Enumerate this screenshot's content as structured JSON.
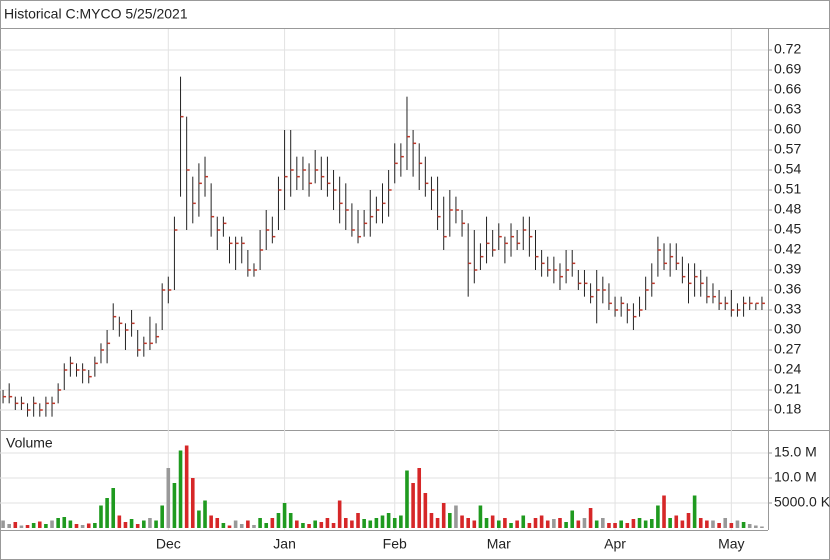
{
  "chart_data": [
    {
      "type": "ohlc",
      "title": "Historical C:MYCO 5/25/2021",
      "categories": [
        null,
        null,
        null,
        null,
        null,
        null,
        null,
        null,
        null,
        null,
        null,
        null,
        null,
        null,
        null,
        null,
        null,
        null,
        null,
        null,
        null,
        null,
        null,
        null,
        null,
        null,
        null,
        "Dec",
        null,
        null,
        null,
        null,
        null,
        null,
        null,
        null,
        null,
        null,
        null,
        null,
        null,
        null,
        null,
        null,
        null,
        null,
        "Jan",
        null,
        null,
        null,
        null,
        null,
        null,
        null,
        null,
        null,
        null,
        null,
        null,
        null,
        null,
        null,
        null,
        null,
        "Feb",
        null,
        null,
        null,
        null,
        null,
        null,
        null,
        null,
        null,
        null,
        null,
        null,
        null,
        null,
        null,
        null,
        "Mar",
        null,
        null,
        null,
        null,
        null,
        null,
        null,
        null,
        null,
        null,
        null,
        null,
        null,
        null,
        null,
        null,
        null,
        null,
        "Apr",
        null,
        null,
        null,
        null,
        null,
        null,
        null,
        null,
        null,
        null,
        null,
        null,
        null,
        null,
        null,
        null,
        null,
        null,
        "May",
        null,
        null,
        null,
        null,
        null
      ],
      "high": [
        0.21,
        0.22,
        0.2,
        0.2,
        0.19,
        0.2,
        0.19,
        0.2,
        0.2,
        0.22,
        0.25,
        0.26,
        0.25,
        0.25,
        0.24,
        0.26,
        0.28,
        0.3,
        0.34,
        0.32,
        0.31,
        0.33,
        0.3,
        0.29,
        0.32,
        0.31,
        0.37,
        0.38,
        0.47,
        0.68,
        0.62,
        0.53,
        0.55,
        0.56,
        0.52,
        0.47,
        0.47,
        0.44,
        0.44,
        0.44,
        0.42,
        0.4,
        0.45,
        0.48,
        0.47,
        0.53,
        0.6,
        0.6,
        0.56,
        0.56,
        0.55,
        0.57,
        0.56,
        0.56,
        0.54,
        0.53,
        0.52,
        0.49,
        0.48,
        0.48,
        0.51,
        0.5,
        0.52,
        0.54,
        0.58,
        0.58,
        0.65,
        0.6,
        0.58,
        0.56,
        0.53,
        0.53,
        0.5,
        0.51,
        0.5,
        0.48,
        0.46,
        0.45,
        0.43,
        0.47,
        0.45,
        0.46,
        0.44,
        0.46,
        0.45,
        0.47,
        0.47,
        0.45,
        0.42,
        0.41,
        0.41,
        0.4,
        0.42,
        0.42,
        0.39,
        0.39,
        0.37,
        0.39,
        0.38,
        0.37,
        0.35,
        0.35,
        0.34,
        0.34,
        0.35,
        0.38,
        0.4,
        0.44,
        0.43,
        0.43,
        0.43,
        0.41,
        0.4,
        0.4,
        0.39,
        0.38,
        0.37,
        0.36,
        0.35,
        0.36,
        0.34,
        0.35,
        0.35,
        0.34,
        0.35
      ],
      "low": [
        0.19,
        0.19,
        0.18,
        0.18,
        0.17,
        0.17,
        0.17,
        0.17,
        0.17,
        0.19,
        0.21,
        0.23,
        0.23,
        0.22,
        0.22,
        0.23,
        0.25,
        0.25,
        0.3,
        0.29,
        0.27,
        0.29,
        0.26,
        0.26,
        0.27,
        0.28,
        0.3,
        0.34,
        0.36,
        0.5,
        0.45,
        0.46,
        0.47,
        0.5,
        0.44,
        0.42,
        0.44,
        0.4,
        0.39,
        0.4,
        0.38,
        0.38,
        0.39,
        0.42,
        0.43,
        0.45,
        0.48,
        0.5,
        0.51,
        0.51,
        0.5,
        0.52,
        0.51,
        0.5,
        0.48,
        0.46,
        0.45,
        0.44,
        0.43,
        0.44,
        0.44,
        0.46,
        0.46,
        0.47,
        0.52,
        0.53,
        0.54,
        0.53,
        0.51,
        0.5,
        0.48,
        0.45,
        0.42,
        0.44,
        0.46,
        0.44,
        0.35,
        0.37,
        0.39,
        0.4,
        0.41,
        0.42,
        0.4,
        0.41,
        0.42,
        0.42,
        0.41,
        0.39,
        0.38,
        0.38,
        0.37,
        0.36,
        0.37,
        0.38,
        0.36,
        0.35,
        0.34,
        0.31,
        0.34,
        0.33,
        0.32,
        0.32,
        0.31,
        0.3,
        0.32,
        0.33,
        0.35,
        0.38,
        0.39,
        0.38,
        0.39,
        0.37,
        0.34,
        0.35,
        0.35,
        0.34,
        0.34,
        0.33,
        0.33,
        0.32,
        0.32,
        0.32,
        0.33,
        0.33,
        0.33
      ],
      "close": [
        0.2,
        0.2,
        0.19,
        0.19,
        0.18,
        0.19,
        0.18,
        0.19,
        0.19,
        0.21,
        0.24,
        0.25,
        0.24,
        0.24,
        0.23,
        0.25,
        0.27,
        0.28,
        0.32,
        0.31,
        0.3,
        0.31,
        0.27,
        0.28,
        0.28,
        0.29,
        0.36,
        0.36,
        0.45,
        0.62,
        0.54,
        0.49,
        0.52,
        0.53,
        0.47,
        0.45,
        0.46,
        0.43,
        0.43,
        0.43,
        0.39,
        0.39,
        0.42,
        0.45,
        0.44,
        0.51,
        0.53,
        0.54,
        0.53,
        0.54,
        0.52,
        0.54,
        0.53,
        0.52,
        0.51,
        0.49,
        0.48,
        0.45,
        0.44,
        0.46,
        0.47,
        0.48,
        0.49,
        0.51,
        0.55,
        0.56,
        0.59,
        0.58,
        0.55,
        0.52,
        0.51,
        0.47,
        0.44,
        0.48,
        0.48,
        0.46,
        0.4,
        0.39,
        0.41,
        0.43,
        0.42,
        0.44,
        0.43,
        0.44,
        0.43,
        0.45,
        0.44,
        0.41,
        0.4,
        0.39,
        0.39,
        0.38,
        0.39,
        0.4,
        0.37,
        0.37,
        0.35,
        0.36,
        0.36,
        0.34,
        0.33,
        0.34,
        0.33,
        0.32,
        0.33,
        0.36,
        0.37,
        0.42,
        0.4,
        0.41,
        0.4,
        0.38,
        0.37,
        0.38,
        0.37,
        0.35,
        0.35,
        0.34,
        0.34,
        0.33,
        0.33,
        0.34,
        0.34,
        0.34,
        0.34
      ],
      "color": "#222222",
      "close_color": "#c0392b",
      "ylim": [
        0.15,
        0.75
      ],
      "yticks": [
        {
          "value": 0.18,
          "label": "0.18"
        },
        {
          "value": 0.21,
          "label": "0.21"
        },
        {
          "value": 0.24,
          "label": "0.24"
        },
        {
          "value": 0.27,
          "label": "0.27"
        },
        {
          "value": 0.3,
          "label": "0.30"
        },
        {
          "value": 0.33,
          "label": "0.33"
        },
        {
          "value": 0.36,
          "label": "0.36"
        },
        {
          "value": 0.39,
          "label": "0.39"
        },
        {
          "value": 0.42,
          "label": "0.42"
        },
        {
          "value": 0.45,
          "label": "0.45"
        },
        {
          "value": 0.48,
          "label": "0.48"
        },
        {
          "value": 0.51,
          "label": "0.51"
        },
        {
          "value": 0.54,
          "label": "0.54"
        },
        {
          "value": 0.57,
          "label": "0.57"
        },
        {
          "value": 0.6,
          "label": "0.60"
        },
        {
          "value": 0.63,
          "label": "0.63"
        },
        {
          "value": 0.66,
          "label": "0.66"
        },
        {
          "value": 0.69,
          "label": "0.69"
        },
        {
          "value": 0.72,
          "label": "0.72"
        }
      ],
      "grid": true
    },
    {
      "type": "bar",
      "title": "Volume",
      "values": [
        1500000,
        800000,
        1200000,
        500000,
        600000,
        1000000,
        1300000,
        800000,
        1500000,
        2000000,
        2200000,
        1500000,
        800000,
        600000,
        900000,
        1000000,
        4500000,
        6000000,
        8000000,
        2500000,
        1200000,
        1800000,
        800000,
        1500000,
        2000000,
        1500000,
        4500000,
        12000000,
        9000000,
        15500000,
        16500000,
        10000000,
        3500000,
        5500000,
        2500000,
        2000000,
        1000000,
        500000,
        1500000,
        800000,
        1500000,
        600000,
        2000000,
        1000000,
        2000000,
        3000000,
        5000000,
        3000000,
        1500000,
        1000000,
        800000,
        1500000,
        1200000,
        2000000,
        1000000,
        5500000,
        2000000,
        1500000,
        3000000,
        1800000,
        1500000,
        2000000,
        2500000,
        3000000,
        2000000,
        2500000,
        11500000,
        9000000,
        12000000,
        7000000,
        3000000,
        2000000,
        5000000,
        3000000,
        4500000,
        2500000,
        2000000,
        1500000,
        4500000,
        2000000,
        2500000,
        1500000,
        2000000,
        1000000,
        1500000,
        2500000,
        1000000,
        2000000,
        2500000,
        1500000,
        1800000,
        2000000,
        1200000,
        3500000,
        1500000,
        2000000,
        4000000,
        1500000,
        2000000,
        1000000,
        1000000,
        1500000,
        1000000,
        1800000,
        2000000,
        1500000,
        1800000,
        4500000,
        6500000,
        2000000,
        2500000,
        1500000,
        3000000,
        6500000,
        2000000,
        1500000,
        1500000,
        1000000,
        2000000,
        1000000,
        1500000,
        1200000,
        800000,
        500000,
        300000
      ],
      "up_color": "#1f9a1f",
      "down_color": "#d62728",
      "flat_color": "#999999",
      "ylim": [
        0,
        19200000
      ],
      "yticks": [
        {
          "value": 15000000,
          "label": "15.0 M"
        },
        {
          "value": 10000000,
          "label": "10.0 M"
        },
        {
          "value": 5000000,
          "label": "5000.0 K"
        }
      ],
      "grid": true
    }
  ]
}
